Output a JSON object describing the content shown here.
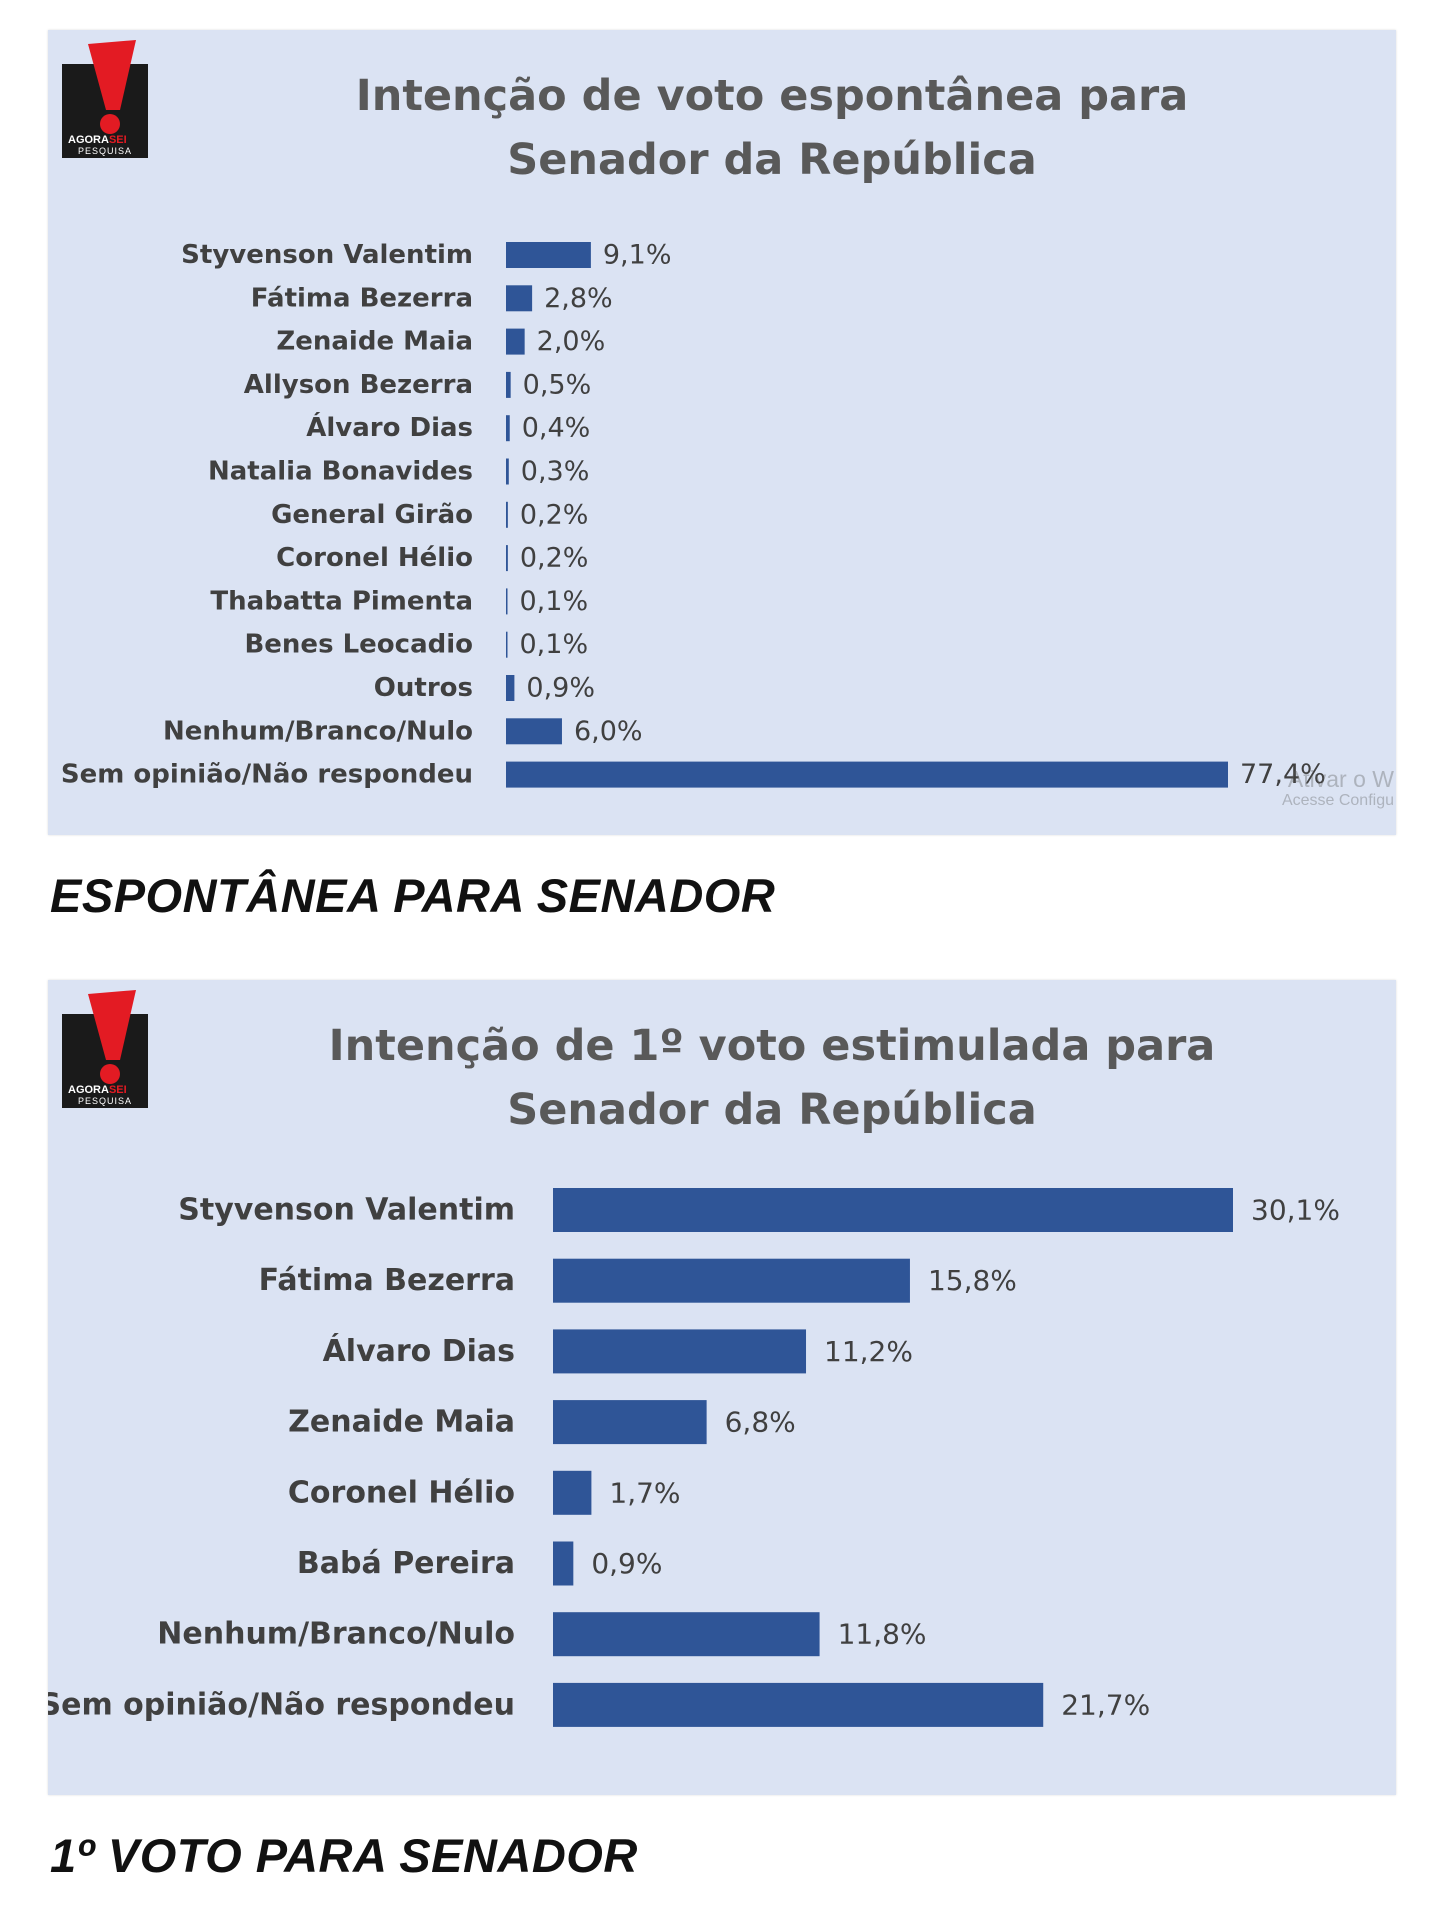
{
  "brand": {
    "logo_top": "AGORA",
    "logo_top_accent": "SEI",
    "logo_bottom": "PESQUISA",
    "accent": "#e31b23",
    "box": "#1a1a1a"
  },
  "bar_color": "#2f5597",
  "watermark": {
    "line1": "Ativar o W",
    "line2": "Acesse Configu"
  },
  "captions": {
    "first": "ESPONTÂNEA PARA SENADOR",
    "second": "1º VOTO PARA SENADOR"
  },
  "chart_data": [
    {
      "type": "bar",
      "orientation": "horizontal",
      "title_line1": "Intenção de voto espontânea para",
      "title_line2": "Senador da República",
      "categories": [
        "Styvenson Valentim",
        "Fátima Bezerra",
        "Zenaide Maia",
        "Allyson Bezerra",
        "Álvaro Dias",
        "Natalia Bonavides",
        "General Girão",
        "Coronel Hélio",
        "Thabatta Pimenta",
        "Benes Leocadio",
        "Outros",
        "Nenhum/Branco/Nulo",
        "Sem opinião/Não respondeu"
      ],
      "values": [
        9.1,
        2.8,
        2.0,
        0.5,
        0.4,
        0.3,
        0.2,
        0.2,
        0.1,
        0.1,
        0.9,
        6.0,
        77.4
      ],
      "value_labels": [
        "9,1%",
        "2,8%",
        "2,0%",
        "0,5%",
        "0,4%",
        "0,3%",
        "0,2%",
        "0,2%",
        "0,1%",
        "0,1%",
        "0,9%",
        "6,0%",
        "77,4%"
      ],
      "unit": "%"
    },
    {
      "type": "bar",
      "orientation": "horizontal",
      "title_line1": "Intenção de 1º voto estimulada para",
      "title_line2": "Senador da República",
      "categories": [
        "Styvenson Valentim",
        "Fátima Bezerra",
        "Álvaro Dias",
        "Zenaide Maia",
        "Coronel Hélio",
        "Babá Pereira",
        "Nenhum/Branco/Nulo",
        "Sem opinião/Não respondeu"
      ],
      "values": [
        30.1,
        15.8,
        11.2,
        6.8,
        1.7,
        0.9,
        11.8,
        21.7
      ],
      "value_labels": [
        "30,1%",
        "15,8%",
        "11,2%",
        "6,8%",
        "1,7%",
        "0,9%",
        "11,8%",
        "21,7%"
      ],
      "unit": "%"
    }
  ]
}
